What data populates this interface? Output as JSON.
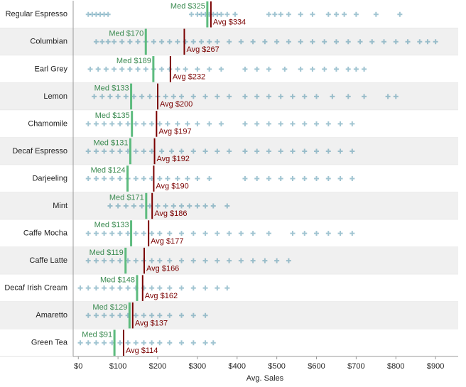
{
  "chart_data": {
    "type": "strip",
    "x_label": "Avg. Sales",
    "categories": [
      "Regular Espresso",
      "Columbian",
      "Earl Grey",
      "Lemon",
      "Chamomile",
      "Decaf Espresso",
      "Darjeeling",
      "Mint",
      "Caffe Mocha",
      "Caffe Latte",
      "Decaf Irish Cream",
      "Amaretto",
      "Green Tea"
    ],
    "points": [
      [
        25,
        35,
        45,
        55,
        65,
        75,
        285,
        300,
        310,
        320,
        330,
        340,
        350,
        360,
        375,
        395,
        480,
        495,
        510,
        530,
        560,
        590,
        630,
        650,
        670,
        700,
        750,
        810
      ],
      [
        45,
        60,
        75,
        90,
        110,
        130,
        150,
        170,
        190,
        210,
        230,
        250,
        270,
        290,
        310,
        330,
        350,
        380,
        410,
        440,
        470,
        500,
        530,
        560,
        590,
        620,
        650,
        680,
        710,
        740,
        770,
        800,
        830,
        860,
        880,
        900
      ],
      [
        30,
        50,
        70,
        90,
        110,
        130,
        150,
        170,
        190,
        210,
        230,
        250,
        270,
        300,
        330,
        360,
        420,
        450,
        480,
        520,
        560,
        590,
        620,
        650,
        680,
        700,
        720
      ],
      [
        40,
        60,
        80,
        100,
        120,
        140,
        160,
        180,
        200,
        220,
        240,
        260,
        290,
        320,
        350,
        380,
        420,
        450,
        480,
        510,
        540,
        570,
        600,
        640,
        680,
        720,
        780,
        800
      ],
      [
        25,
        45,
        65,
        85,
        105,
        125,
        145,
        165,
        185,
        205,
        225,
        250,
        275,
        300,
        330,
        360,
        420,
        450,
        480,
        510,
        540,
        570,
        600,
        630,
        660,
        690
      ],
      [
        25,
        45,
        65,
        85,
        105,
        125,
        145,
        165,
        185,
        210,
        235,
        260,
        290,
        320,
        350,
        380,
        420,
        450,
        480,
        510,
        540,
        570,
        600,
        630,
        660,
        690
      ],
      [
        25,
        45,
        65,
        85,
        105,
        125,
        145,
        165,
        185,
        205,
        225,
        250,
        275,
        300,
        330,
        420,
        450,
        480,
        510,
        540,
        570,
        600,
        630,
        660,
        690
      ],
      [
        80,
        100,
        120,
        140,
        160,
        180,
        200,
        220,
        240,
        260,
        280,
        300,
        320,
        340,
        375
      ],
      [
        25,
        45,
        65,
        85,
        105,
        125,
        145,
        165,
        185,
        205,
        230,
        260,
        290,
        320,
        350,
        380,
        410,
        440,
        480,
        540,
        570,
        600,
        630,
        660,
        690
      ],
      [
        25,
        45,
        65,
        85,
        105,
        125,
        145,
        165,
        185,
        205,
        230,
        260,
        290,
        320,
        350,
        380,
        410,
        440,
        470,
        500,
        530
      ],
      [
        5,
        25,
        45,
        65,
        85,
        105,
        125,
        145,
        165,
        185,
        205,
        230,
        260,
        290,
        320,
        350,
        375
      ],
      [
        25,
        45,
        65,
        85,
        105,
        125,
        145,
        165,
        185,
        205,
        230,
        260,
        290,
        320
      ],
      [
        5,
        25,
        45,
        65,
        85,
        105,
        125,
        145,
        165,
        185,
        205,
        230,
        260,
        290,
        320,
        340
      ]
    ],
    "medians": [
      325,
      170,
      189,
      133,
      135,
      131,
      124,
      171,
      133,
      119,
      148,
      129,
      91
    ],
    "median_labels": [
      "Med $325",
      "Med $170",
      "Med $189",
      "Med $133",
      "Med $135",
      "Med $131",
      "Med $124",
      "Med $171",
      "Med $133",
      "Med $119",
      "Med $148",
      "Med $129",
      "Med $91"
    ],
    "averages": [
      334,
      267,
      232,
      200,
      197,
      192,
      190,
      186,
      177,
      166,
      162,
      137,
      114
    ],
    "average_labels": [
      "Avg $334",
      "Avg $267",
      "Avg $232",
      "Avg $200",
      "Avg $197",
      "Avg $192",
      "Avg $190",
      "Avg $186",
      "Avg $177",
      "Avg $166",
      "Avg $162",
      "Avg $137",
      "Avg $114"
    ],
    "point_color": "#2e7f9c",
    "median_color": "#5dbb7e",
    "average_color": "#7a0000",
    "xlim": [
      -13,
      957
    ],
    "xticks": [
      {
        "value": 0,
        "label": "$0"
      },
      {
        "value": 100,
        "label": "$100"
      },
      {
        "value": 200,
        "label": "$200"
      },
      {
        "value": 300,
        "label": "$300"
      },
      {
        "value": 400,
        "label": "$400"
      },
      {
        "value": 500,
        "label": "$500"
      },
      {
        "value": 600,
        "label": "$600"
      },
      {
        "value": 700,
        "label": "$700"
      },
      {
        "value": 800,
        "label": "$800"
      },
      {
        "value": 900,
        "label": "$900"
      }
    ]
  }
}
